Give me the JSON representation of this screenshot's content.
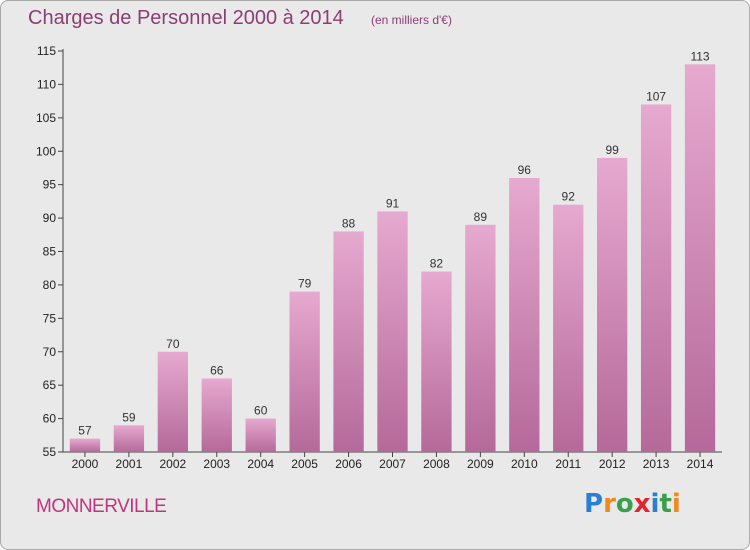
{
  "title": "Charges de Personnel 2000 à 2014",
  "subtitle": "(en milliers d'€)",
  "commune": "MONNERVILLE",
  "logo": {
    "letters": [
      "P",
      "r",
      "o",
      "x",
      "i",
      "t",
      "i"
    ],
    "colors": [
      "#2a7fd4",
      "#f08a1c",
      "#3aa04a",
      "#e0262c",
      "#2a7fd4",
      "#3aa04a",
      "#f08a1c"
    ]
  },
  "chart_data": {
    "type": "bar",
    "categories": [
      "2000",
      "2001",
      "2002",
      "2003",
      "2004",
      "2005",
      "2006",
      "2007",
      "2008",
      "2009",
      "2010",
      "2011",
      "2012",
      "2013",
      "2014"
    ],
    "values": [
      57,
      59,
      70,
      66,
      60,
      79,
      88,
      91,
      82,
      89,
      96,
      92,
      99,
      107,
      113
    ],
    "ylim": [
      55,
      115
    ],
    "yticks": [
      55,
      60,
      65,
      70,
      75,
      80,
      85,
      90,
      95,
      100,
      105,
      110,
      115
    ],
    "grid": false,
    "bar_color_top": "#e6a9cf",
    "bar_color_bottom": "#b5699a"
  }
}
